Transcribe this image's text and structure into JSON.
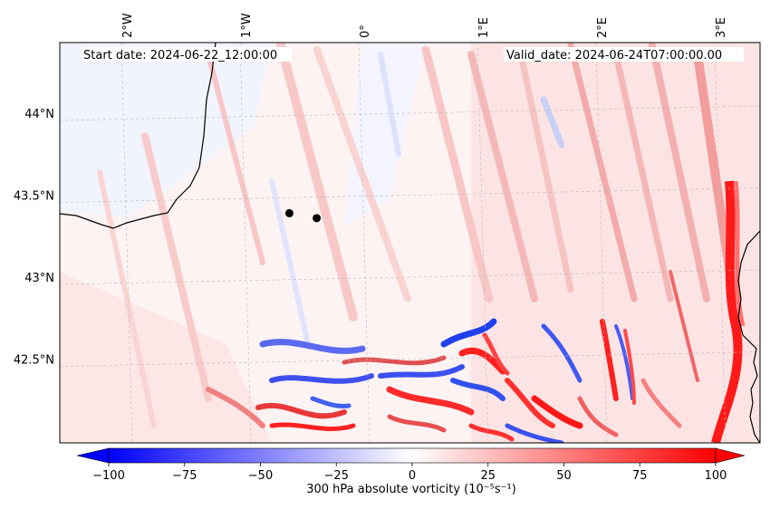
{
  "map": {
    "start_label": "Start date: 2024-06-22_12:00:00",
    "valid_label": "Valid_date: 2024-06-24T07:00:00.00",
    "lon_labels": [
      {
        "text": "2°W",
        "lon": -2
      },
      {
        "text": "1°W",
        "lon": -1
      },
      {
        "text": "0°",
        "lon": 0
      },
      {
        "text": "1°E",
        "lon": 1
      },
      {
        "text": "2°E",
        "lon": 2
      },
      {
        "text": "3°E",
        "lon": 3
      }
    ],
    "lat_labels": [
      {
        "text": "44°N",
        "lat": 44.0
      },
      {
        "text": "43.5°N",
        "lat": 43.5
      },
      {
        "text": "43°N",
        "lat": 43.0
      },
      {
        "text": "42.5°N",
        "lat": 42.5
      }
    ],
    "points": [
      {
        "lon": -0.63,
        "lat": 43.39
      },
      {
        "lon": -0.4,
        "lat": 43.36
      }
    ],
    "colorbar": {
      "label": "300 hPa absolute vorticity (10⁻⁵s⁻¹)",
      "ticks": [
        "−100",
        "−75",
        "−50",
        "−25",
        "0",
        "25",
        "50",
        "75",
        "100"
      ],
      "min": -100,
      "max": 100,
      "extend": "both",
      "colors": {
        "negative": "#0000ff",
        "zero": "#ffffff",
        "positive": "#ff0000"
      }
    }
  }
}
